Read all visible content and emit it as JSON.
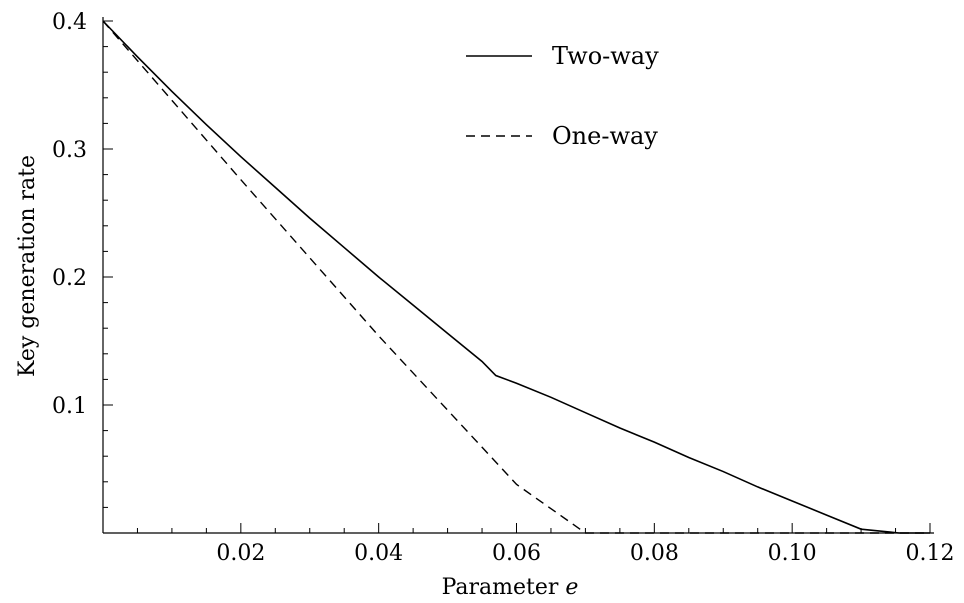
{
  "chart_data": {
    "type": "line",
    "xlabel": "Parameter",
    "xlabel_var": "e",
    "ylabel": "Key generation rate",
    "xlim": [
      0,
      0.12
    ],
    "ylim": [
      0,
      0.4
    ],
    "x_ticks_major": [
      0.02,
      0.04,
      0.06,
      0.08,
      0.1,
      0.12
    ],
    "x_tick_labels": [
      "0.02",
      "0.04",
      "0.06",
      "0.08",
      "0.10",
      "0.12"
    ],
    "x_ticks_minor": [
      0.005,
      0.01,
      0.015,
      0.025,
      0.03,
      0.035,
      0.045,
      0.05,
      0.055,
      0.065,
      0.07,
      0.075,
      0.085,
      0.09,
      0.095,
      0.105,
      0.11,
      0.115
    ],
    "y_ticks_major": [
      0.1,
      0.2,
      0.3,
      0.4
    ],
    "y_tick_labels": [
      "0.1",
      "0.2",
      "0.3",
      "0.4"
    ],
    "y_ticks_minor": [
      0.02,
      0.04,
      0.06,
      0.08,
      0.12,
      0.14,
      0.16,
      0.18,
      0.22,
      0.24,
      0.26,
      0.28,
      0.32,
      0.34,
      0.36,
      0.38
    ],
    "grid": false,
    "legend_position": "top-right",
    "series": [
      {
        "name": "Two-way",
        "style": "solid",
        "x": [
          0,
          0.005,
          0.01,
          0.015,
          0.02,
          0.025,
          0.03,
          0.035,
          0.04,
          0.045,
          0.05,
          0.055,
          0.057,
          0.06,
          0.065,
          0.07,
          0.075,
          0.08,
          0.085,
          0.09,
          0.095,
          0.1,
          0.105,
          0.11,
          0.1155,
          0.12
        ],
        "y": [
          0.4,
          0.372,
          0.345,
          0.319,
          0.294,
          0.27,
          0.246,
          0.223,
          0.2,
          0.178,
          0.156,
          0.134,
          0.123,
          0.117,
          0.106,
          0.094,
          0.082,
          0.071,
          0.059,
          0.048,
          0.036,
          0.025,
          0.014,
          0.003,
          0.0,
          0.0
        ]
      },
      {
        "name": "One-way",
        "style": "dashed",
        "x": [
          0,
          0.01,
          0.02,
          0.03,
          0.04,
          0.05,
          0.06,
          0.07,
          0.0705,
          0.09,
          0.12
        ],
        "y": [
          0.4,
          0.338,
          0.276,
          0.215,
          0.154,
          0.096,
          0.038,
          0.0,
          0.0,
          0.0,
          0.0
        ]
      }
    ]
  }
}
